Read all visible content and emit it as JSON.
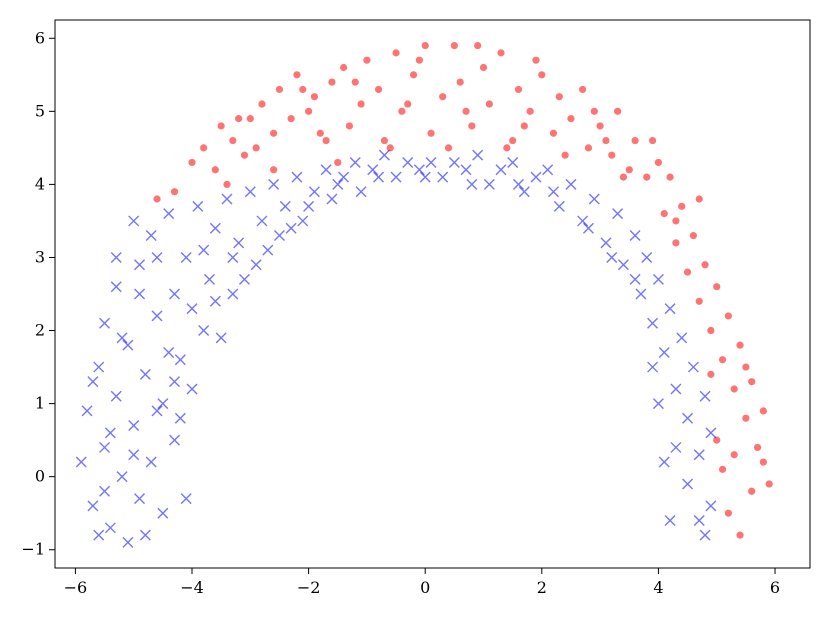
{
  "chart_data": {
    "type": "scatter",
    "title": "",
    "xlabel": "",
    "ylabel": "",
    "xlim": [
      -6.35,
      6.6
    ],
    "ylim": [
      -1.25,
      6.25
    ],
    "grid": false,
    "legend": "none",
    "xticks": [
      -6,
      -4,
      -2,
      0,
      2,
      4,
      6
    ],
    "yticks": [
      -1,
      0,
      1,
      2,
      3,
      4,
      5,
      6
    ],
    "xtick_labels": [
      "−6",
      "−4",
      "−2",
      "0",
      "2",
      "4",
      "6"
    ],
    "ytick_labels": [
      "−1",
      "0",
      "1",
      "2",
      "3",
      "4",
      "5",
      "6"
    ],
    "series": [
      {
        "marker": "circle",
        "color": "#ff0000",
        "alpha": 0.55,
        "points": [
          [
            -4.6,
            3.8
          ],
          [
            -4.3,
            3.9
          ],
          [
            -4.0,
            4.3
          ],
          [
            -3.8,
            4.5
          ],
          [
            -3.6,
            4.2
          ],
          [
            -3.5,
            4.8
          ],
          [
            -3.3,
            4.6
          ],
          [
            -3.1,
            4.4
          ],
          [
            -3.0,
            4.9
          ],
          [
            -2.8,
            5.1
          ],
          [
            -2.6,
            4.7
          ],
          [
            -2.5,
            5.3
          ],
          [
            -2.3,
            4.9
          ],
          [
            -2.2,
            5.5
          ],
          [
            -2.0,
            5.0
          ],
          [
            -1.9,
            5.2
          ],
          [
            -1.7,
            4.6
          ],
          [
            -1.6,
            5.4
          ],
          [
            -1.4,
            5.6
          ],
          [
            -1.3,
            4.8
          ],
          [
            -1.1,
            5.1
          ],
          [
            -1.0,
            5.7
          ],
          [
            -0.8,
            5.3
          ],
          [
            -0.7,
            4.6
          ],
          [
            -0.5,
            5.8
          ],
          [
            -0.4,
            5.0
          ],
          [
            -0.2,
            5.5
          ],
          [
            0.0,
            5.9
          ],
          [
            0.1,
            4.7
          ],
          [
            0.3,
            5.2
          ],
          [
            0.5,
            5.9
          ],
          [
            0.6,
            5.4
          ],
          [
            0.8,
            4.8
          ],
          [
            1.0,
            5.6
          ],
          [
            1.1,
            5.1
          ],
          [
            1.3,
            5.8
          ],
          [
            1.5,
            4.6
          ],
          [
            1.6,
            5.3
          ],
          [
            1.8,
            5.0
          ],
          [
            2.0,
            5.5
          ],
          [
            2.2,
            4.7
          ],
          [
            2.3,
            5.2
          ],
          [
            2.5,
            4.9
          ],
          [
            2.7,
            5.3
          ],
          [
            2.8,
            4.5
          ],
          [
            3.0,
            4.8
          ],
          [
            3.2,
            4.4
          ],
          [
            3.3,
            5.0
          ],
          [
            3.5,
            4.2
          ],
          [
            3.6,
            4.6
          ],
          [
            3.8,
            4.1
          ],
          [
            4.0,
            4.3
          ],
          [
            4.1,
            3.6
          ],
          [
            4.2,
            4.1
          ],
          [
            4.3,
            3.2
          ],
          [
            4.4,
            3.7
          ],
          [
            4.5,
            2.8
          ],
          [
            4.6,
            3.3
          ],
          [
            4.7,
            2.4
          ],
          [
            4.8,
            2.9
          ],
          [
            4.9,
            2.0
          ],
          [
            5.0,
            2.6
          ],
          [
            5.1,
            1.6
          ],
          [
            5.2,
            2.2
          ],
          [
            5.3,
            1.2
          ],
          [
            5.4,
            1.8
          ],
          [
            5.5,
            0.8
          ],
          [
            5.6,
            1.3
          ],
          [
            5.7,
            0.4
          ],
          [
            5.8,
            0.9
          ],
          [
            5.9,
            -0.1
          ],
          [
            5.0,
            0.5
          ],
          [
            5.2,
            -0.5
          ],
          [
            5.4,
            -0.8
          ],
          [
            5.1,
            0.1
          ],
          [
            5.6,
            -0.2
          ],
          [
            4.9,
            1.4
          ],
          [
            5.3,
            0.3
          ],
          [
            5.8,
            0.2
          ],
          [
            4.7,
            3.8
          ],
          [
            3.9,
            4.6
          ],
          [
            2.9,
            5.0
          ],
          [
            1.9,
            5.7
          ],
          [
            0.9,
            5.9
          ],
          [
            -0.1,
            5.7
          ],
          [
            -1.2,
            5.4
          ],
          [
            -2.1,
            5.3
          ],
          [
            -3.2,
            4.9
          ],
          [
            -0.6,
            4.5
          ],
          [
            0.4,
            4.5
          ],
          [
            1.4,
            4.5
          ],
          [
            2.4,
            4.4
          ],
          [
            -1.5,
            4.3
          ],
          [
            -2.6,
            4.2
          ],
          [
            -3.4,
            4.0
          ],
          [
            3.4,
            4.1
          ],
          [
            -0.3,
            5.1
          ],
          [
            0.7,
            5.0
          ],
          [
            1.7,
            4.8
          ],
          [
            -1.8,
            4.7
          ],
          [
            -2.9,
            4.5
          ],
          [
            3.1,
            4.6
          ],
          [
            4.3,
            3.5
          ],
          [
            5.5,
            1.5
          ]
        ]
      },
      {
        "marker": "x",
        "color": "#0000ff",
        "alpha": 0.55,
        "points": [
          [
            -5.9,
            0.2
          ],
          [
            -5.8,
            0.9
          ],
          [
            -5.7,
            -0.4
          ],
          [
            -5.6,
            1.5
          ],
          [
            -5.5,
            0.4
          ],
          [
            -5.5,
            2.1
          ],
          [
            -5.4,
            -0.7
          ],
          [
            -5.3,
            1.1
          ],
          [
            -5.3,
            2.6
          ],
          [
            -5.2,
            0.0
          ],
          [
            -5.1,
            -0.9
          ],
          [
            -5.1,
            1.8
          ],
          [
            -5.0,
            0.7
          ],
          [
            -4.9,
            2.9
          ],
          [
            -4.9,
            -0.3
          ],
          [
            -4.8,
            1.4
          ],
          [
            -4.7,
            3.3
          ],
          [
            -4.7,
            0.2
          ],
          [
            -4.6,
            2.2
          ],
          [
            -4.5,
            -0.5
          ],
          [
            -4.5,
            1.0
          ],
          [
            -4.4,
            3.6
          ],
          [
            -4.3,
            0.5
          ],
          [
            -4.3,
            2.5
          ],
          [
            -4.2,
            1.6
          ],
          [
            -4.1,
            -0.3
          ],
          [
            -4.1,
            3.0
          ],
          [
            -4.0,
            1.2
          ],
          [
            -3.9,
            3.7
          ],
          [
            -3.8,
            2.0
          ],
          [
            -3.7,
            2.7
          ],
          [
            -3.6,
            3.4
          ],
          [
            -3.5,
            1.9
          ],
          [
            -3.4,
            3.8
          ],
          [
            -3.3,
            2.5
          ],
          [
            -3.2,
            3.2
          ],
          [
            -3.0,
            3.9
          ],
          [
            -2.9,
            2.9
          ],
          [
            -2.8,
            3.5
          ],
          [
            -2.6,
            4.0
          ],
          [
            -2.5,
            3.3
          ],
          [
            -2.4,
            3.7
          ],
          [
            -2.2,
            4.1
          ],
          [
            -2.1,
            3.5
          ],
          [
            -1.9,
            3.9
          ],
          [
            -1.7,
            4.2
          ],
          [
            -1.6,
            3.8
          ],
          [
            -1.4,
            4.1
          ],
          [
            -1.2,
            4.3
          ],
          [
            -1.1,
            3.9
          ],
          [
            -0.9,
            4.2
          ],
          [
            -0.7,
            4.4
          ],
          [
            -0.5,
            4.1
          ],
          [
            -0.3,
            4.3
          ],
          [
            -0.1,
            4.2
          ],
          [
            0.1,
            4.3
          ],
          [
            0.3,
            4.1
          ],
          [
            0.5,
            4.3
          ],
          [
            0.7,
            4.2
          ],
          [
            0.9,
            4.4
          ],
          [
            1.1,
            4.0
          ],
          [
            1.3,
            4.2
          ],
          [
            1.5,
            4.3
          ],
          [
            1.7,
            3.9
          ],
          [
            1.9,
            4.1
          ],
          [
            2.1,
            4.2
          ],
          [
            2.3,
            3.7
          ],
          [
            2.5,
            4.0
          ],
          [
            2.7,
            3.5
          ],
          [
            2.9,
            3.8
          ],
          [
            3.1,
            3.2
          ],
          [
            3.3,
            3.6
          ],
          [
            3.4,
            2.9
          ],
          [
            3.6,
            3.3
          ],
          [
            3.7,
            2.5
          ],
          [
            3.8,
            3.0
          ],
          [
            3.9,
            2.1
          ],
          [
            4.0,
            2.7
          ],
          [
            4.1,
            1.7
          ],
          [
            4.2,
            2.3
          ],
          [
            4.3,
            1.2
          ],
          [
            4.3,
            0.4
          ],
          [
            4.4,
            1.9
          ],
          [
            4.5,
            0.8
          ],
          [
            4.5,
            -0.1
          ],
          [
            4.6,
            1.5
          ],
          [
            4.7,
            0.3
          ],
          [
            4.7,
            -0.6
          ],
          [
            4.8,
            1.1
          ],
          [
            4.8,
            -0.8
          ],
          [
            4.9,
            0.6
          ],
          [
            4.9,
            -0.4
          ],
          [
            4.2,
            -0.6
          ],
          [
            4.1,
            0.2
          ],
          [
            4.0,
            1.0
          ],
          [
            3.9,
            1.5
          ],
          [
            -5.6,
            -0.8
          ],
          [
            -5.4,
            0.6
          ],
          [
            -5.2,
            1.9
          ],
          [
            -4.9,
            2.5
          ],
          [
            -4.6,
            3.0
          ],
          [
            -4.4,
            1.7
          ],
          [
            -4.2,
            0.8
          ],
          [
            -4.0,
            2.3
          ],
          [
            -3.8,
            3.1
          ],
          [
            -3.6,
            2.4
          ],
          [
            -3.3,
            3.0
          ],
          [
            -3.1,
            2.7
          ],
          [
            -2.7,
            3.1
          ],
          [
            -2.3,
            3.4
          ],
          [
            -2.0,
            3.7
          ],
          [
            -1.5,
            4.0
          ],
          [
            -0.8,
            4.1
          ],
          [
            0.0,
            4.1
          ],
          [
            0.8,
            4.0
          ],
          [
            1.6,
            4.0
          ],
          [
            2.2,
            3.9
          ],
          [
            2.8,
            3.4
          ],
          [
            3.2,
            3.0
          ],
          [
            3.6,
            2.7
          ],
          [
            -5.7,
            1.3
          ],
          [
            -5.5,
            -0.2
          ],
          [
            -5.0,
            0.3
          ],
          [
            -4.8,
            -0.8
          ],
          [
            -4.6,
            0.9
          ],
          [
            -4.3,
            1.3
          ],
          [
            -5.3,
            3.0
          ],
          [
            -5.0,
            3.5
          ]
        ]
      }
    ]
  }
}
